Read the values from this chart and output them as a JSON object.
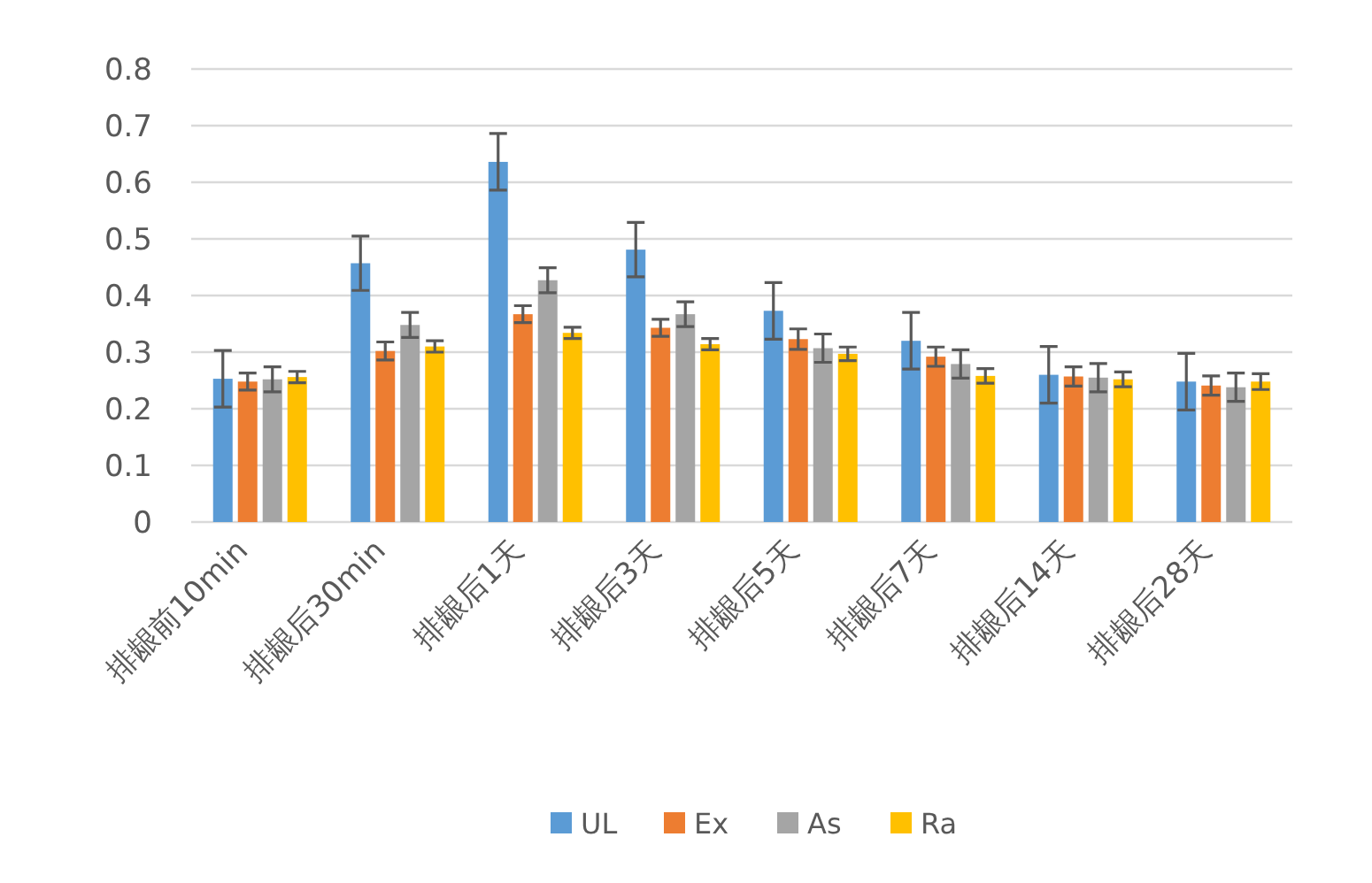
{
  "chart_data": {
    "type": "bar",
    "categories": [
      "排龈前10min",
      "排龈后30min",
      "排龈后1天",
      "排龈后3天",
      "排龈后5天",
      "排龈后7天",
      "排龈后14天",
      "排龈后28天"
    ],
    "series": [
      {
        "name": "UL",
        "color": "#5b9bd5",
        "values": [
          0.253,
          0.457,
          0.636,
          0.481,
          0.373,
          0.32,
          0.26,
          0.248
        ],
        "errors": [
          0.05,
          0.048,
          0.05,
          0.048,
          0.05,
          0.05,
          0.05,
          0.05
        ]
      },
      {
        "name": "Ex",
        "color": "#ed7d31",
        "values": [
          0.248,
          0.302,
          0.367,
          0.343,
          0.323,
          0.292,
          0.257,
          0.241
        ],
        "errors": [
          0.015,
          0.016,
          0.015,
          0.015,
          0.018,
          0.017,
          0.017,
          0.017
        ]
      },
      {
        "name": "As",
        "color": "#a5a5a5",
        "values": [
          0.252,
          0.348,
          0.427,
          0.367,
          0.307,
          0.279,
          0.255,
          0.238
        ],
        "errors": [
          0.022,
          0.022,
          0.022,
          0.022,
          0.025,
          0.025,
          0.025,
          0.025
        ]
      },
      {
        "name": "Ra",
        "color": "#ffc000",
        "values": [
          0.256,
          0.31,
          0.334,
          0.314,
          0.297,
          0.258,
          0.252,
          0.248
        ],
        "errors": [
          0.01,
          0.01,
          0.01,
          0.01,
          0.012,
          0.013,
          0.013,
          0.014
        ]
      }
    ],
    "ylim": [
      0,
      0.8
    ],
    "yticks": [
      0,
      0.1,
      0.2,
      0.3,
      0.4,
      0.5,
      0.6,
      0.7,
      0.8
    ],
    "grid": "y",
    "legend": "bottom"
  }
}
